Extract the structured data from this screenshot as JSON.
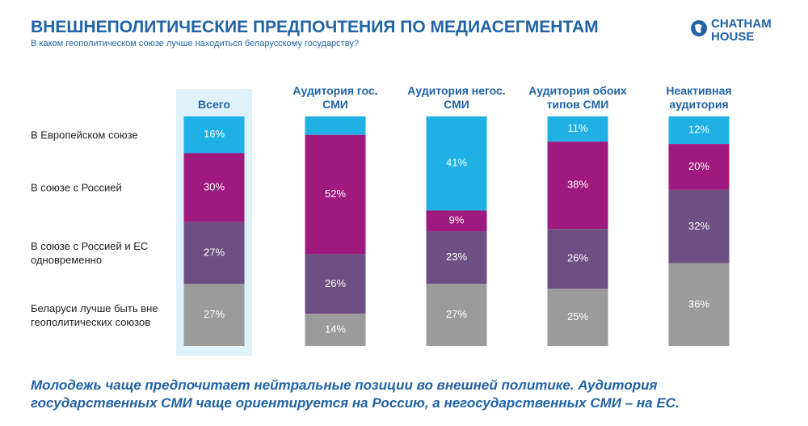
{
  "title": "ВНЕШНЕПОЛИТИЧЕСКИЕ ПРЕДПОЧТЕНИЯ ПО МЕДИАСЕГМЕНТАМ",
  "subtitle": "В каком геополитическом союзе лучше находиться беларусскому государству?",
  "logo": [
    "CHATHAM",
    "HOUSE"
  ],
  "note": "Молодежь чаще предпочитает нейтральные позиции во внешней политике. Аудитория государственных СМИ чаще ориентируется на Россию, а негосударственных СМИ – на ЕС.",
  "chart_data": {
    "type": "stacked-bar",
    "categories": [
      "Всего",
      "Аудитория гос. СМИ",
      "Аудитория негос. СМИ",
      "Аудитория обоих типов СМИ",
      "Неактивная аудитория"
    ],
    "ylim": [
      0,
      100
    ],
    "highlight_category": "Всего",
    "series": [
      {
        "name": "В Европейском союзе",
        "color": "#1fb1e6",
        "values": [
          16,
          8,
          41,
          11,
          12
        ],
        "value_labels": [
          "16%",
          null,
          "41%",
          "11%",
          "12%"
        ]
      },
      {
        "name": "В союзе с Россией",
        "color": "#a0197f",
        "values": [
          30,
          52,
          9,
          38,
          20
        ],
        "value_labels": [
          "30%",
          "52%",
          "9%",
          "38%",
          "20%"
        ]
      },
      {
        "name": "В союзе с Россией и ЕС одновременно",
        "color": "#6e4f84",
        "values": [
          27,
          26,
          23,
          26,
          32
        ],
        "value_labels": [
          "27%",
          "26%",
          "23%",
          "26%",
          "32%"
        ]
      },
      {
        "name": "Беларуси лучше быть вне геополитических союзов",
        "color": "#9b9b9b",
        "values": [
          27,
          14,
          27,
          25,
          36
        ],
        "value_labels": [
          "27%",
          "14%",
          "27%",
          "25%",
          "36%"
        ]
      }
    ]
  }
}
